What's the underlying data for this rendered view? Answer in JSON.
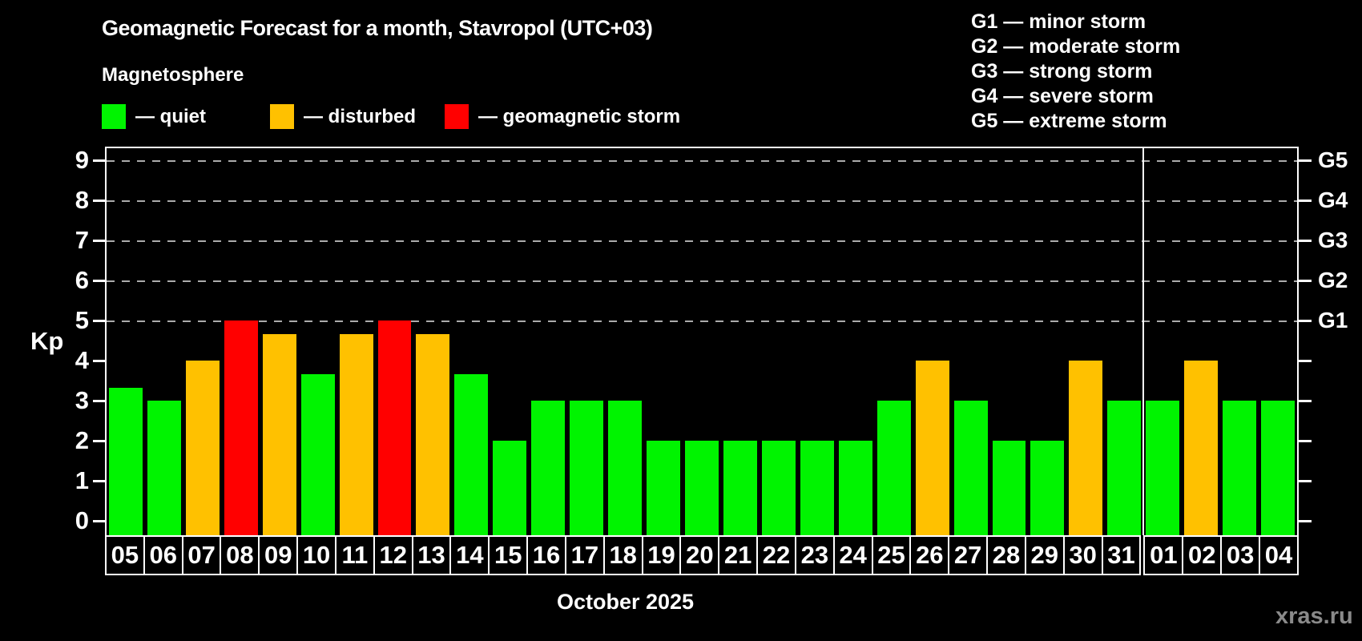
{
  "title": "Geomagnetic Forecast for a month, Stavropol (UTC+03)",
  "subtitle": "Magnetosphere",
  "legend": {
    "items": [
      {
        "status": "quiet",
        "label": "— quiet"
      },
      {
        "status": "disturbed",
        "label": "— disturbed"
      },
      {
        "status": "storm",
        "label": "— geomagnetic storm"
      }
    ]
  },
  "g_scale_legend": [
    "G1 — minor storm",
    "G2 — moderate storm",
    "G3 — strong storm",
    "G4 — severe storm",
    "G5 — extreme storm"
  ],
  "axis": {
    "y_label": "Kp",
    "y_ticks": [
      "0",
      "1",
      "2",
      "3",
      "4",
      "5",
      "6",
      "7",
      "8",
      "9"
    ],
    "right_labels": [
      {
        "kp": 5,
        "label": "G1"
      },
      {
        "kp": 6,
        "label": "G2"
      },
      {
        "kp": 7,
        "label": "G3"
      },
      {
        "kp": 8,
        "label": "G4"
      },
      {
        "kp": 9,
        "label": "G5"
      }
    ]
  },
  "x_label": "October 2025",
  "watermark": "xras.ru",
  "chart_data": {
    "type": "bar",
    "title": "Geomagnetic Forecast for a month, Stavropol (UTC+03)",
    "xlabel": "October 2025",
    "ylabel": "Kp",
    "ylim": [
      0,
      9
    ],
    "gridlines_at_kp": [
      5,
      6,
      7,
      8,
      9
    ],
    "legend_position": "top",
    "categories": [
      "05",
      "06",
      "07",
      "08",
      "09",
      "10",
      "11",
      "12",
      "13",
      "14",
      "15",
      "16",
      "17",
      "18",
      "19",
      "20",
      "21",
      "22",
      "23",
      "24",
      "25",
      "26",
      "27",
      "28",
      "29",
      "30",
      "31",
      "01",
      "02",
      "03",
      "04"
    ],
    "values": [
      3.33,
      3,
      4,
      5,
      4.67,
      3.67,
      4.67,
      5,
      4.67,
      3.67,
      2,
      3,
      3,
      3,
      2,
      2,
      2,
      2,
      2,
      2,
      3,
      4,
      3,
      2,
      2,
      4,
      3,
      3,
      4,
      3,
      3
    ],
    "statuses": [
      "quiet",
      "quiet",
      "disturbed",
      "storm",
      "disturbed",
      "quiet",
      "disturbed",
      "storm",
      "disturbed",
      "quiet",
      "quiet",
      "quiet",
      "quiet",
      "quiet",
      "quiet",
      "quiet",
      "quiet",
      "quiet",
      "quiet",
      "quiet",
      "quiet",
      "disturbed",
      "quiet",
      "quiet",
      "quiet",
      "disturbed",
      "quiet",
      "quiet",
      "disturbed",
      "quiet",
      "quiet"
    ],
    "colors": {
      "quiet": "#00f400",
      "disturbed": "#ffc100",
      "storm": "#ff0000"
    },
    "month_split_index": 27
  }
}
